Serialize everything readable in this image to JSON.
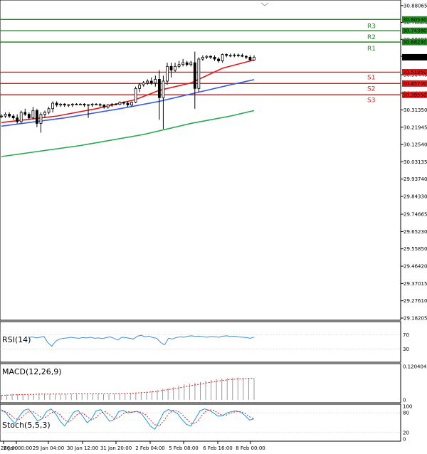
{
  "chart_data": {
    "type": "candlestick",
    "colors": {
      "bull": "#1e9e1e",
      "bear": "#e01a1a",
      "resistance": "#1e8c1e",
      "support": "#e01a1a",
      "ma_fast": "#e01a1a",
      "ma_mid": "#3c5fd8",
      "ma_slow": "#22a94e",
      "rsi": "#3a8fe0",
      "macd": "#e02020",
      "stoch_main": "#1f9ad6",
      "stoch_signal": "#e02020"
    },
    "price_axis": {
      "ticks": [
        "30.88065",
        "30.78880",
        "30.69695",
        "30.60510",
        "30.50440",
        "30.40445",
        "30.31350",
        "30.21945",
        "30.12540",
        "30.03135",
        "29.93740",
        "29.84330",
        "29.74665",
        "29.65230",
        "29.55850",
        "29.46420",
        "29.37015",
        "29.27610",
        "29.18205"
      ],
      "range": [
        29.182,
        30.88
      ]
    },
    "levels": [
      {
        "name": "R3",
        "value": 30.8053,
        "label": "30.80530",
        "kind": "resistance"
      },
      {
        "name": "R2",
        "value": 30.7438,
        "label": "30.74380",
        "kind": "resistance"
      },
      {
        "name": "R1",
        "value": 30.6823,
        "label": "30.68230",
        "kind": "resistance"
      },
      {
        "name": "S1",
        "value": 30.5185,
        "label": "30.51850",
        "kind": "support"
      },
      {
        "name": "S2",
        "value": 30.457,
        "label": "30.45700",
        "kind": "support"
      },
      {
        "name": "S3",
        "value": 30.3955,
        "label": "30.39550",
        "kind": "support"
      }
    ],
    "current_price": {
      "value": 30.59986,
      "label": "30.59986"
    },
    "x_labels": [
      "26:00",
      "26 Jan 00:00",
      "29 Jan 04:00",
      "30 Jan 12:00",
      "31 Jan 20:00",
      "2 Feb 04:00",
      "5 Feb 08:00",
      "6 Feb 16:00",
      "8 Feb 00:00"
    ],
    "candles": [
      [
        30.28,
        30.29,
        30.27,
        30.28
      ],
      [
        30.28,
        30.3,
        30.27,
        30.29
      ],
      [
        30.29,
        30.3,
        30.27,
        30.28
      ],
      [
        30.28,
        30.29,
        30.26,
        30.27
      ],
      [
        30.27,
        30.29,
        30.24,
        30.25
      ],
      [
        30.25,
        30.31,
        30.24,
        30.3
      ],
      [
        30.3,
        30.32,
        30.28,
        30.29
      ],
      [
        30.29,
        30.3,
        30.26,
        30.27
      ],
      [
        30.27,
        30.33,
        30.26,
        30.31
      ],
      [
        30.31,
        30.32,
        30.22,
        30.24
      ],
      [
        30.24,
        30.3,
        30.19,
        30.29
      ],
      [
        30.29,
        30.31,
        30.27,
        30.3
      ],
      [
        30.3,
        30.33,
        30.29,
        30.32
      ],
      [
        30.32,
        30.36,
        30.3,
        30.35
      ],
      [
        30.35,
        30.36,
        30.33,
        30.34
      ],
      [
        30.34,
        30.35,
        30.33,
        30.345
      ],
      [
        30.345,
        30.35,
        30.33,
        30.34
      ],
      [
        30.34,
        30.345,
        30.33,
        30.342
      ],
      [
        30.342,
        30.35,
        30.33,
        30.345
      ],
      [
        30.345,
        30.35,
        30.34,
        30.343
      ],
      [
        30.343,
        30.35,
        30.34,
        30.345
      ],
      [
        30.345,
        30.35,
        30.33,
        30.34
      ],
      [
        30.34,
        30.345,
        30.27,
        30.342
      ],
      [
        30.342,
        30.35,
        30.33,
        30.345
      ],
      [
        30.345,
        30.35,
        30.34,
        30.343
      ],
      [
        30.343,
        30.35,
        30.33,
        30.34
      ],
      [
        30.34,
        30.345,
        30.32,
        30.33
      ],
      [
        30.33,
        30.345,
        30.32,
        30.342
      ],
      [
        30.342,
        30.35,
        30.33,
        30.345
      ],
      [
        30.345,
        30.35,
        30.34,
        30.343
      ],
      [
        30.343,
        30.36,
        30.34,
        30.355
      ],
      [
        30.355,
        30.36,
        30.34,
        30.35
      ],
      [
        30.35,
        30.36,
        30.33,
        30.34
      ],
      [
        30.34,
        30.36,
        30.33,
        30.355
      ],
      [
        30.355,
        30.44,
        30.35,
        30.43
      ],
      [
        30.43,
        30.46,
        30.41,
        30.45
      ],
      [
        30.45,
        30.47,
        30.44,
        30.46
      ],
      [
        30.46,
        30.48,
        30.45,
        30.47
      ],
      [
        30.47,
        30.49,
        30.45,
        30.46
      ],
      [
        30.46,
        30.5,
        30.44,
        30.48
      ],
      [
        30.48,
        30.53,
        30.26,
        30.38
      ],
      [
        30.38,
        30.5,
        30.21,
        30.47
      ],
      [
        30.47,
        30.57,
        30.45,
        30.55
      ],
      [
        30.55,
        30.57,
        30.49,
        30.53
      ],
      [
        30.53,
        30.57,
        30.52,
        30.55
      ],
      [
        30.55,
        30.58,
        30.54,
        30.56
      ],
      [
        30.56,
        30.59,
        30.55,
        30.57
      ],
      [
        30.57,
        30.58,
        30.55,
        30.56
      ],
      [
        30.56,
        30.58,
        30.55,
        30.57
      ],
      [
        30.57,
        30.63,
        30.32,
        30.43
      ],
      [
        30.43,
        30.6,
        30.41,
        30.59
      ],
      [
        30.59,
        30.61,
        30.58,
        30.6
      ],
      [
        30.6,
        30.61,
        30.59,
        30.605
      ],
      [
        30.605,
        30.61,
        30.59,
        30.6
      ],
      [
        30.6,
        30.61,
        30.58,
        30.59
      ],
      [
        30.59,
        30.6,
        30.57,
        30.58
      ],
      [
        30.58,
        30.62,
        30.57,
        30.615
      ],
      [
        30.615,
        30.62,
        30.6,
        30.61
      ],
      [
        30.61,
        30.62,
        30.6,
        30.61
      ],
      [
        30.61,
        30.62,
        30.6,
        30.612
      ],
      [
        30.612,
        30.62,
        30.6,
        30.61
      ],
      [
        30.61,
        30.62,
        30.6,
        30.605
      ],
      [
        30.605,
        30.61,
        30.59,
        30.6
      ],
      [
        30.6,
        30.61,
        30.58,
        30.585
      ],
      [
        30.585,
        30.61,
        30.58,
        30.6
      ]
    ],
    "ma_fast": [
      [
        0,
        30.245
      ],
      [
        14,
        30.28
      ],
      [
        24,
        30.32
      ],
      [
        34,
        30.37
      ],
      [
        40,
        30.42
      ],
      [
        48,
        30.46
      ],
      [
        56,
        30.54
      ],
      [
        64,
        30.585
      ]
    ],
    "ma_mid": [
      [
        0,
        30.225
      ],
      [
        16,
        30.27
      ],
      [
        30,
        30.32
      ],
      [
        40,
        30.36
      ],
      [
        50,
        30.41
      ],
      [
        58,
        30.45
      ],
      [
        64,
        30.478
      ]
    ],
    "ma_slow": [
      [
        0,
        30.06
      ],
      [
        20,
        30.12
      ],
      [
        36,
        30.18
      ],
      [
        48,
        30.24
      ],
      [
        58,
        30.28
      ],
      [
        64,
        30.31
      ]
    ],
    "rsi": {
      "label": "RSI(14)",
      "ticks": [
        "100",
        "70",
        "30",
        "0"
      ],
      "values": [
        62,
        64,
        61,
        63,
        65,
        48,
        38,
        52,
        58,
        60,
        61,
        63,
        61,
        60,
        62,
        61,
        63,
        60,
        61,
        59,
        62,
        64,
        60,
        55,
        63,
        62,
        60,
        58,
        66,
        68,
        64,
        66,
        62,
        60,
        48,
        42,
        60,
        58,
        62,
        64,
        63,
        66,
        67,
        65,
        66,
        64,
        63,
        65,
        64,
        63,
        66,
        67,
        65,
        66,
        64,
        63,
        62,
        60,
        63
      ]
    },
    "macd": {
      "label": "MACD(12,26,9)",
      "ticks": [
        "0.120404",
        "0"
      ],
      "hist": [
        0.018,
        0.02,
        0.022,
        0.021,
        0.02,
        0.019,
        0.02,
        0.021,
        0.022,
        0.021,
        0.02,
        0.02,
        0.021,
        0.022,
        0.022,
        0.023,
        0.022,
        0.022,
        0.021,
        0.021,
        0.022,
        0.022,
        0.023,
        0.024,
        0.025,
        0.026,
        0.028,
        0.03,
        0.033,
        0.036,
        0.04,
        0.043,
        0.047,
        0.052,
        0.056,
        0.059,
        0.062,
        0.065,
        0.069,
        0.072,
        0.075,
        0.077,
        0.079,
        0.08,
        0.081,
        0.08,
        0.079,
        0.078
      ],
      "signal": [
        0.016,
        0.017,
        0.018,
        0.019,
        0.019,
        0.02,
        0.02,
        0.021,
        0.021,
        0.021,
        0.021,
        0.021,
        0.021,
        0.022,
        0.022,
        0.022,
        0.022,
        0.022,
        0.022,
        0.022,
        0.022,
        0.022,
        0.023,
        0.023,
        0.024,
        0.025,
        0.026,
        0.027,
        0.029,
        0.031,
        0.034,
        0.037,
        0.04,
        0.043,
        0.047,
        0.05,
        0.054,
        0.057,
        0.061,
        0.064,
        0.067,
        0.07,
        0.072,
        0.074,
        0.076,
        0.077,
        0.078,
        0.078
      ]
    },
    "stoch": {
      "label": "Stoch(5,5,3)",
      "ticks": [
        "100",
        "80",
        "20",
        "0"
      ],
      "main": [
        90,
        80,
        62,
        48,
        70,
        88,
        92,
        75,
        55,
        62,
        84,
        92,
        78,
        55,
        40,
        60,
        82,
        88,
        70,
        50,
        62,
        86,
        90,
        72,
        54,
        60,
        84,
        88,
        80,
        82,
        85,
        78,
        60,
        40,
        30,
        55,
        82,
        90,
        86,
        78,
        60,
        45,
        40,
        62,
        86,
        92,
        88,
        80,
        70,
        72,
        80,
        84,
        86,
        82,
        72,
        58,
        62
      ],
      "signal": [
        86,
        84,
        74,
        62,
        60,
        72,
        84,
        84,
        74,
        64,
        68,
        80,
        84,
        74,
        58,
        52,
        64,
        78,
        80,
        68,
        58,
        66,
        80,
        84,
        74,
        62,
        66,
        78,
        84,
        82,
        84,
        82,
        74,
        58,
        44,
        40,
        56,
        76,
        88,
        86,
        76,
        62,
        48,
        48,
        64,
        82,
        90,
        88,
        80,
        72,
        74,
        80,
        84,
        84,
        78,
        68,
        62
      ]
    }
  }
}
